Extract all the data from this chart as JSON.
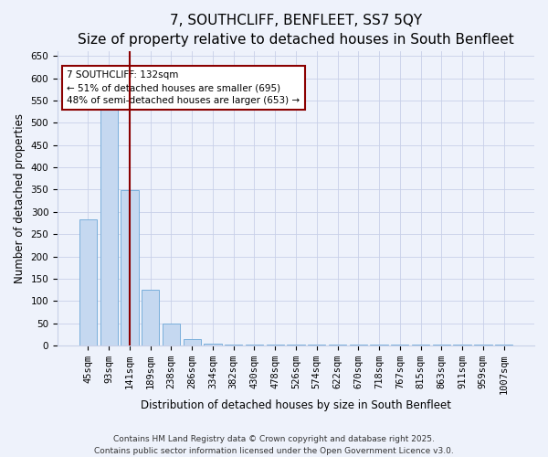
{
  "title": "7, SOUTHCLIFF, BENFLEET, SS7 5QY",
  "subtitle": "Size of property relative to detached houses in South Benfleet",
  "xlabel": "Distribution of detached houses by size in South Benfleet",
  "ylabel": "Number of detached properties",
  "categories": [
    "45sqm",
    "93sqm",
    "141sqm",
    "189sqm",
    "238sqm",
    "286sqm",
    "334sqm",
    "382sqm",
    "430sqm",
    "478sqm",
    "526sqm",
    "574sqm",
    "622sqm",
    "670sqm",
    "718sqm",
    "767sqm",
    "815sqm",
    "863sqm",
    "911sqm",
    "959sqm",
    "1007sqm"
  ],
  "values": [
    283,
    530,
    348,
    125,
    50,
    15,
    5,
    2,
    2,
    2,
    2,
    1,
    1,
    1,
    1,
    1,
    1,
    1,
    1,
    1,
    3
  ],
  "bar_color": "#c5d8f0",
  "bar_edge_color": "#7aafdb",
  "vline_x_index": 2,
  "vline_color": "#8b0000",
  "annotation_text": "7 SOUTHCLIFF: 132sqm\n← 51% of detached houses are smaller (695)\n48% of semi-detached houses are larger (653) →",
  "annotation_box_color": "white",
  "annotation_box_edge": "#8b0000",
  "ylim": [
    0,
    660
  ],
  "yticks": [
    0,
    50,
    100,
    150,
    200,
    250,
    300,
    350,
    400,
    450,
    500,
    550,
    600,
    650
  ],
  "footer": "Contains HM Land Registry data © Crown copyright and database right 2025.\nContains public sector information licensed under the Open Government Licence v3.0.",
  "bg_color": "#eef2fb",
  "grid_color": "#c8d0e8",
  "title_fontsize": 11,
  "label_fontsize": 8.5,
  "tick_fontsize": 7.5,
  "footer_fontsize": 6.5,
  "annot_fontsize": 7.5
}
